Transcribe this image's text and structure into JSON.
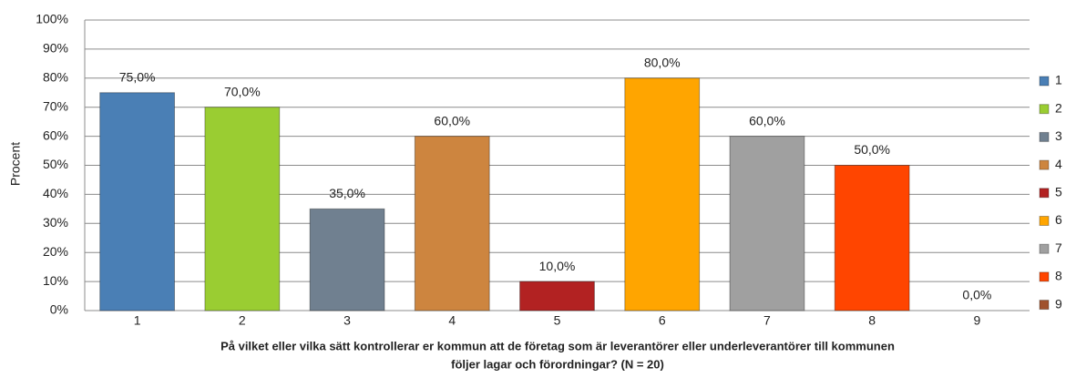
{
  "chart_data": {
    "type": "bar",
    "categories": [
      "1",
      "2",
      "3",
      "4",
      "5",
      "6",
      "7",
      "8",
      "9"
    ],
    "values": [
      75,
      70,
      35,
      60,
      10,
      80,
      60,
      50,
      0
    ],
    "value_labels": [
      "75,0%",
      "70,0%",
      "35,0%",
      "60,0%",
      "10,0%",
      "80,0%",
      "60,0%",
      "50,0%",
      "0,0%"
    ],
    "colors": [
      "#4a7fb5",
      "#9acd32",
      "#708090",
      "#cd853f",
      "#b22222",
      "#ffa500",
      "#a0a0a0",
      "#ff4500",
      "#a0522d"
    ],
    "ylabel": "Procent",
    "xlabel": [
      "På vilket eller vilka sätt kontrollerar er kommun att de företag som är leverantörer eller underleverantörer till kommunen",
      "följer lagar och förordningar? (N = 20)"
    ],
    "ylim": [
      0,
      100
    ],
    "yticks": [
      {
        "value": 0,
        "label": "0%"
      },
      {
        "value": 10,
        "label": "10%"
      },
      {
        "value": 20,
        "label": "20%"
      },
      {
        "value": 30,
        "label": "30%"
      },
      {
        "value": 40,
        "label": "40%"
      },
      {
        "value": 50,
        "label": "50%"
      },
      {
        "value": 60,
        "label": "60%"
      },
      {
        "value": 70,
        "label": "70%"
      },
      {
        "value": 80,
        "label": "80%"
      },
      {
        "value": 90,
        "label": "90%"
      },
      {
        "value": 100,
        "label": "100%"
      }
    ],
    "grid": true,
    "legend": "right"
  }
}
